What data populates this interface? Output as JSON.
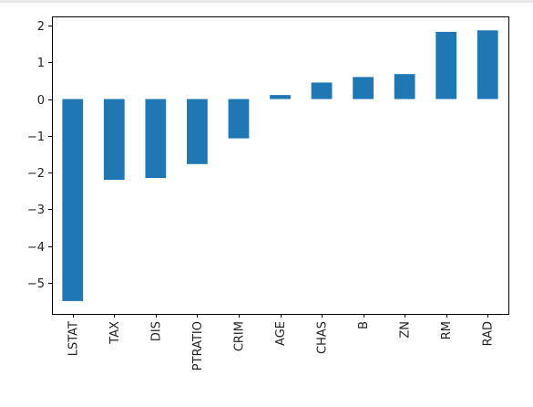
{
  "chart_data": {
    "type": "bar",
    "categories": [
      "LSTAT",
      "TAX",
      "DIS",
      "PTRATIO",
      "CRIM",
      "AGE",
      "CHAS",
      "B",
      "ZN",
      "RM",
      "RAD"
    ],
    "values": [
      -5.5,
      -2.2,
      -2.15,
      -1.77,
      -1.07,
      0.11,
      0.45,
      0.6,
      0.68,
      1.83,
      1.87
    ],
    "ylim": [
      -5.85,
      2.25
    ],
    "yticks": [
      2,
      1,
      0,
      -1,
      -2,
      -3,
      -4,
      -5
    ],
    "ytick_labels": [
      "2",
      "1",
      "0",
      "−1",
      "−2",
      "−3",
      "−4",
      "−5"
    ],
    "title": "",
    "xlabel": "",
    "ylabel": "",
    "grid": false,
    "legend": "none",
    "bar_color": "#1f77b4"
  }
}
